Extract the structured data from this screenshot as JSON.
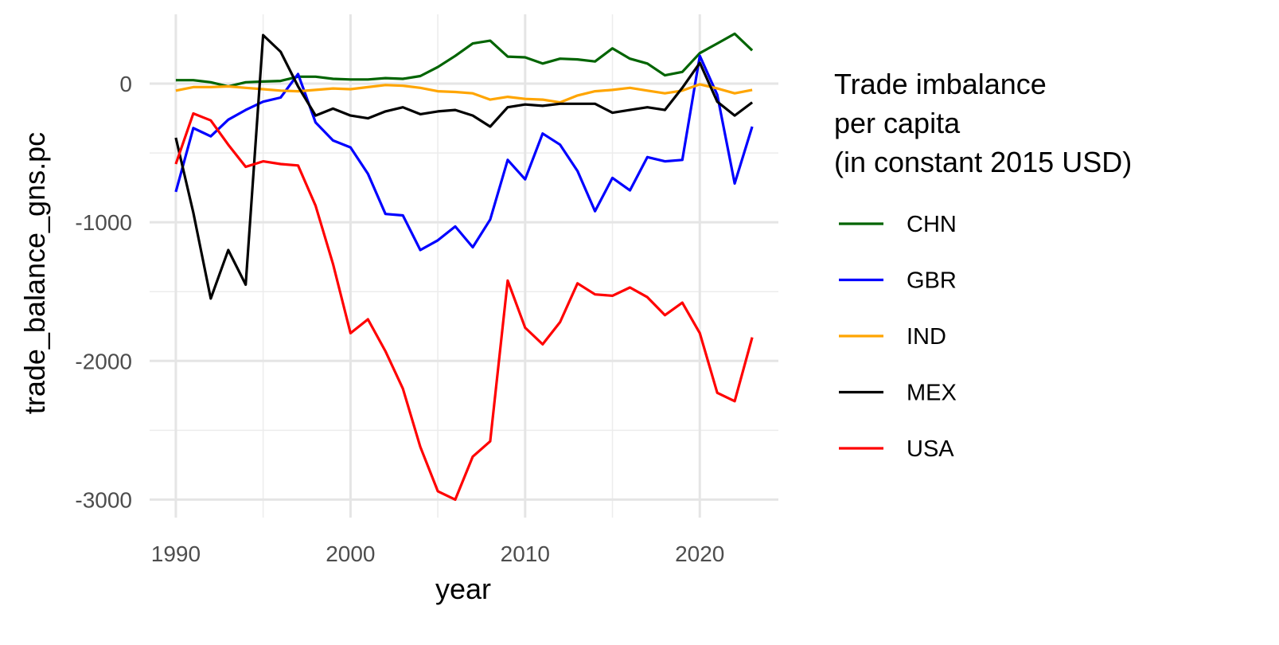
{
  "chart_data": {
    "type": "line",
    "xlabel": "year",
    "ylabel": "trade_balance_gns.pc",
    "xlim": [
      1988.5,
      2024.5
    ],
    "ylim": [
      -3130,
      500
    ],
    "x_ticks": [
      1990,
      2000,
      2010,
      2020
    ],
    "y_ticks": [
      0,
      -1000,
      -2000,
      -3000
    ],
    "x_tick_labels": [
      "1990",
      "2000",
      "2010",
      "2020"
    ],
    "y_tick_labels": [
      "0",
      "-1000",
      "-2000",
      "-3000"
    ],
    "grid": true,
    "legend": {
      "position": "right",
      "title_lines": [
        "Trade imbalance",
        "per capita",
        "(in constant 2015 USD)"
      ]
    },
    "x": [
      1990,
      1991,
      1992,
      1993,
      1994,
      1995,
      1996,
      1997,
      1998,
      1999,
      2000,
      2001,
      2002,
      2003,
      2004,
      2005,
      2006,
      2007,
      2008,
      2009,
      2010,
      2011,
      2012,
      2013,
      2014,
      2015,
      2016,
      2017,
      2018,
      2019,
      2020,
      2021,
      2022,
      2023
    ],
    "series": [
      {
        "name": "CHN",
        "color": "#006400",
        "values": [
          25,
          25,
          10,
          -20,
          10,
          15,
          20,
          50,
          50,
          35,
          30,
          30,
          40,
          35,
          55,
          120,
          200,
          290,
          310,
          195,
          190,
          145,
          180,
          175,
          160,
          255,
          180,
          145,
          60,
          85,
          220,
          290,
          360,
          240
        ]
      },
      {
        "name": "GBR",
        "color": "#0000FF",
        "values": [
          -780,
          -320,
          -380,
          -260,
          -190,
          -130,
          -100,
          70,
          -280,
          -410,
          -460,
          -650,
          -940,
          -950,
          -1200,
          -1130,
          -1030,
          -1180,
          -980,
          -550,
          -690,
          -360,
          -440,
          -630,
          -920,
          -680,
          -770,
          -530,
          -560,
          -550,
          200,
          -80,
          -720,
          -310
        ]
      },
      {
        "name": "IND",
        "color": "#FFA500",
        "values": [
          -50,
          -25,
          -25,
          -20,
          -30,
          -40,
          -50,
          -55,
          -45,
          -35,
          -40,
          -25,
          -10,
          -15,
          -30,
          -55,
          -60,
          -70,
          -115,
          -95,
          -110,
          -115,
          -135,
          -85,
          -55,
          -45,
          -30,
          -50,
          -70,
          -50,
          -5,
          -35,
          -70,
          -45
        ]
      },
      {
        "name": "MEX",
        "color": "#000000",
        "values": [
          -390,
          -930,
          -1550,
          -1200,
          -1450,
          350,
          230,
          -20,
          -230,
          -180,
          -230,
          -250,
          -200,
          -170,
          -220,
          -200,
          -190,
          -230,
          -310,
          -170,
          -150,
          -160,
          -145,
          -145,
          -145,
          -210,
          -190,
          -170,
          -190,
          -30,
          150,
          -130,
          -230,
          -135
        ]
      },
      {
        "name": "USA",
        "color": "#FF0000",
        "values": [
          -580,
          -215,
          -265,
          -440,
          -600,
          -560,
          -580,
          -590,
          -880,
          -1300,
          -1800,
          -1700,
          -1930,
          -2200,
          -2620,
          -2940,
          -3000,
          -2690,
          -2580,
          -1420,
          -1760,
          -1880,
          -1720,
          -1440,
          -1520,
          -1530,
          -1470,
          -1540,
          -1670,
          -1580,
          -1800,
          -2230,
          -2290,
          -1830
        ]
      }
    ]
  }
}
